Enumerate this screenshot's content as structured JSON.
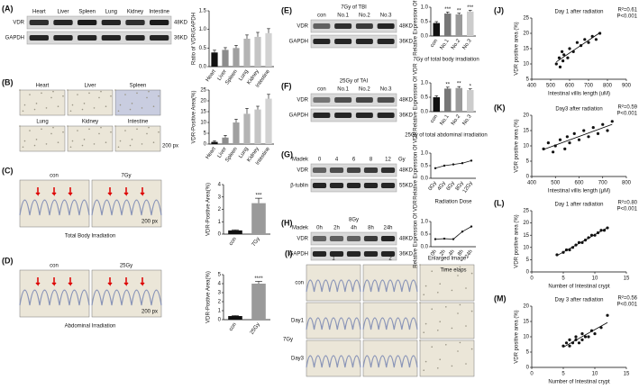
{
  "panel_labels": [
    "(A)",
    "(B)",
    "(C)",
    "(D)",
    "(E)",
    "(F)",
    "(G)",
    "(H)",
    "(I)",
    "(J)",
    "(K)",
    "(L)",
    "(M)"
  ],
  "blot_A": {
    "lanes": [
      "Heart",
      "Liver",
      "Spleen",
      "Lung",
      "Kidney",
      "Intestine"
    ],
    "rows": [
      "VDR",
      "GAPDH"
    ],
    "sizes": [
      "48KD",
      "36KD"
    ]
  },
  "images_B": {
    "labels": [
      "Heart",
      "Liver",
      "Spleen",
      "Lung",
      "Kidney",
      "Intestine"
    ],
    "scale": "200 px"
  },
  "images_C": {
    "labels": [
      "con",
      "7Gy"
    ],
    "scale": "200 px",
    "caption": "Total Body Irradiation"
  },
  "images_D": {
    "labels": [
      "con",
      "25Gy"
    ],
    "scale": "200 px",
    "caption": "Abdominal Irradiation"
  },
  "blot_E": {
    "title": "7Gy of TBI",
    "lanes": [
      "con",
      "No.1",
      "No.2",
      "No.3"
    ],
    "rows": [
      "VDR",
      "GAPDH"
    ],
    "sizes": [
      "48KD",
      "36KD"
    ]
  },
  "blot_F": {
    "title": "25Gy of TAI",
    "lanes": [
      "con",
      "No.1",
      "No.2",
      "No.3"
    ],
    "rows": [
      "VDR",
      "GAPDH"
    ],
    "sizes": [
      "48KD",
      "36KD"
    ]
  },
  "blot_G": {
    "marker": "Madek",
    "lanes": [
      "0",
      "4",
      "6",
      "8",
      "12"
    ],
    "unit": "Gy",
    "rows": [
      "VDR",
      "β-tublin"
    ],
    "sizes": [
      "48KD",
      "55KD"
    ]
  },
  "blot_H": {
    "title": "8Gy",
    "marker": "Madek",
    "lanes": [
      "0h",
      "2h",
      "4h",
      "8h",
      "24h"
    ],
    "rows": [
      "VDR",
      "GAPDH"
    ],
    "sizes": [
      "48KD",
      "36KD"
    ]
  },
  "images_I": {
    "columns": [
      "1",
      "2",
      "Enlarged Image"
    ],
    "rows": [
      "con",
      "Day1",
      "Day3"
    ],
    "group": "7Gy"
  },
  "chart_data": [
    {
      "type": "bar",
      "ylabel": "Ratio of VDR/GAPDH",
      "categories": [
        "Heart",
        "Liver",
        "Spleen",
        "Lung",
        "Kidney",
        "Intestine"
      ],
      "values": [
        0.38,
        0.45,
        0.5,
        0.75,
        0.8,
        0.9
      ],
      "errors": [
        0.06,
        0.06,
        0.07,
        0.1,
        0.12,
        0.12
      ],
      "colors": [
        "#111111",
        "#8c8c8c",
        "#a0a0a0",
        "#b4b4b4",
        "#c4c4c4",
        "#d2d2d2"
      ],
      "ylim": [
        0,
        1.5
      ],
      "yticks": [
        {
          "value": 0,
          "label": "0.0"
        },
        {
          "value": 0.5,
          "label": "0.5"
        },
        {
          "value": 1,
          "label": "1.0"
        },
        {
          "value": 1.5,
          "label": "1.5"
        }
      ]
    },
    {
      "type": "bar",
      "ylabel": "VDR-Positive Area(%)",
      "categories": [
        "Heart",
        "Liver",
        "Spleen",
        "Lung",
        "Kidney",
        "Intestine"
      ],
      "values": [
        1,
        3,
        10,
        14,
        16,
        21
      ],
      "errors": [
        0.5,
        1,
        1.5,
        2.5,
        1.5,
        2
      ],
      "colors": [
        "#111111",
        "#8c8c8c",
        "#a0a0a0",
        "#b4b4b4",
        "#c4c4c4",
        "#d2d2d2"
      ],
      "ylim": [
        0,
        25
      ],
      "yticks": [
        0,
        5,
        10,
        15,
        20,
        25
      ]
    },
    {
      "type": "bar",
      "ylabel": "VDR-Positive Area(%)",
      "categories": [
        "con",
        "7Gy"
      ],
      "values": [
        0.3,
        2.5
      ],
      "errors": [
        0.05,
        0.4
      ],
      "colors": [
        "#111111",
        "#9a9a9a"
      ],
      "annotations": [
        "***"
      ],
      "ylim": [
        0,
        4
      ],
      "yticks": [
        0,
        1,
        2,
        3,
        4
      ]
    },
    {
      "type": "bar",
      "ylabel": "VDR-Postive Area(%)",
      "categories": [
        "con",
        "25Gy"
      ],
      "values": [
        0.4,
        4.0
      ],
      "errors": [
        0.05,
        0.25
      ],
      "colors": [
        "#111111",
        "#9a9a9a"
      ],
      "annotations": [
        "****"
      ],
      "ylim": [
        0,
        5
      ],
      "yticks": [
        0,
        1,
        2,
        3,
        4,
        5
      ]
    },
    {
      "type": "bar",
      "title": "7Gy of total body irradiation",
      "ylabel": "Relative Expression Of VDR",
      "categories": [
        "con",
        "No.1",
        "No.2",
        "No.3"
      ],
      "values": [
        0.45,
        0.78,
        0.75,
        0.85
      ],
      "errors": [
        0.05,
        0.05,
        0.04,
        0.04
      ],
      "colors": [
        "#111111",
        "#777777",
        "#9a9a9a",
        "#cccccc"
      ],
      "annotations": [
        "***",
        "**",
        "***"
      ],
      "ylim": [
        0,
        1
      ],
      "yticks": [
        {
          "value": 0,
          "label": "0.0"
        },
        {
          "value": 0.5,
          "label": "0.5"
        },
        {
          "value": 1,
          "label": "1.0"
        }
      ]
    },
    {
      "type": "bar",
      "title": "25Gy of total abdominal irradiation",
      "ylabel": "Relative Expression Of VDR",
      "categories": [
        "con",
        "No.1",
        "No.2",
        "No.3"
      ],
      "values": [
        0.5,
        0.8,
        0.82,
        0.75
      ],
      "errors": [
        0.05,
        0.05,
        0.05,
        0.04
      ],
      "colors": [
        "#111111",
        "#777777",
        "#9a9a9a",
        "#cccccc"
      ],
      "annotations": [
        "**",
        "**",
        "*"
      ],
      "ylim": [
        0,
        1
      ],
      "yticks": [
        {
          "value": 0,
          "label": "0.0"
        },
        {
          "value": 0.5,
          "label": "0.5"
        },
        {
          "value": 1,
          "label": "1.0"
        }
      ]
    },
    {
      "type": "line",
      "xlabel": "Radiation Dose",
      "ylabel": "Relative Expression Of VDR",
      "categories": [
        "0Gy",
        "4Gy",
        "6Gy",
        "8Gy",
        "12Gy"
      ],
      "values": [
        0.4,
        0.5,
        0.55,
        0.6,
        0.7
      ],
      "color": "#111111",
      "ylim": [
        0,
        1
      ],
      "yticks": [
        {
          "value": 0,
          "label": "0.0"
        },
        {
          "value": 0.5,
          "label": "0.5"
        },
        {
          "value": 1,
          "label": "1.0"
        }
      ]
    },
    {
      "type": "line",
      "xlabel": "Time elaps",
      "ylabel": "Relative Expression Of VDR",
      "categories": [
        "0h",
        "2h",
        "4h",
        "8h",
        "24h"
      ],
      "values": [
        0.3,
        0.32,
        0.3,
        0.6,
        0.8
      ],
      "color": "#111111",
      "ylim": [
        0,
        1
      ],
      "yticks": [
        {
          "value": 0,
          "label": "0.0"
        },
        {
          "value": 0.5,
          "label": "0.5"
        },
        {
          "value": 1,
          "label": "1.0"
        }
      ]
    },
    {
      "type": "scatter",
      "title": "Day 1 after radiation",
      "annotations": [
        "R²=0.61",
        "P<0.001"
      ],
      "xlabel": "Intestinal villis length (uM)",
      "ylabel": "VDR positive area (%)",
      "x": [
        530,
        545,
        550,
        560,
        565,
        570,
        590,
        600,
        620,
        640,
        660,
        680,
        700,
        720,
        740,
        760
      ],
      "values": [
        10,
        12,
        9,
        14,
        11,
        13,
        12,
        15,
        14,
        17,
        16,
        18,
        17,
        19,
        18,
        20
      ],
      "color": "#111111",
      "xlim": [
        400,
        900
      ],
      "xticks": [
        400,
        500,
        600,
        700,
        800,
        900
      ],
      "ylim": [
        5,
        25
      ],
      "yticks": [
        5,
        10,
        15,
        20,
        25
      ]
    },
    {
      "type": "scatter",
      "title": "Day3 after radiation",
      "annotations": [
        "R²=0.59",
        "P<0.001"
      ],
      "xlabel": "Intestinal villis length (μM)",
      "ylabel": "VDR positive area (%)",
      "x": [
        450,
        470,
        490,
        500,
        520,
        540,
        550,
        560,
        580,
        600,
        620,
        640,
        660,
        680,
        700,
        720,
        740
      ],
      "values": [
        9,
        11,
        8,
        10,
        12,
        9,
        13,
        11,
        14,
        12,
        15,
        13,
        16,
        14,
        17,
        15,
        18
      ],
      "color": "#111111",
      "xlim": [
        400,
        800
      ],
      "xticks": [
        400,
        500,
        600,
        700,
        800
      ],
      "ylim": [
        0,
        20
      ],
      "yticks": [
        0,
        5,
        10,
        15,
        20
      ]
    },
    {
      "type": "scatter",
      "title": "Day 1 after radiation",
      "annotations": [
        "R²=0.80",
        "P<0.001"
      ],
      "xlabel": "Number of Intestinal crypt",
      "ylabel": "VDR positive area (%)",
      "x": [
        4,
        5,
        5.5,
        6,
        6.5,
        7,
        7.5,
        8,
        8.5,
        9,
        9.5,
        10,
        10.5,
        11,
        11.5,
        12
      ],
      "values": [
        7,
        8,
        9,
        9,
        10,
        11,
        12,
        12,
        13,
        14,
        15,
        15,
        16,
        17,
        17,
        18
      ],
      "color": "#111111",
      "xlim": [
        0,
        15
      ],
      "xticks": [
        0,
        5,
        10,
        15
      ],
      "ylim": [
        0,
        25
      ],
      "yticks": [
        0,
        5,
        10,
        15,
        20,
        25
      ]
    },
    {
      "type": "scatter",
      "title": "Day 3 after radiation",
      "annotations": [
        "R²=0.56",
        "P<0.001"
      ],
      "xlabel": "Number of Intestinal crypt",
      "ylabel": "VDR positive area (%)",
      "x": [
        5,
        5.5,
        6,
        6,
        6.5,
        7,
        7,
        7.5,
        8,
        8,
        8.5,
        9,
        9.5,
        10,
        11,
        12
      ],
      "values": [
        7,
        8,
        7,
        9,
        8,
        9,
        10,
        8,
        9,
        11,
        10,
        10,
        12,
        11,
        13,
        17
      ],
      "color": "#111111",
      "xlim": [
        0,
        15
      ],
      "xticks": [
        0,
        5,
        10,
        15
      ],
      "ylim": [
        0,
        20
      ],
      "yticks": [
        0,
        5,
        10,
        15,
        20
      ]
    }
  ]
}
